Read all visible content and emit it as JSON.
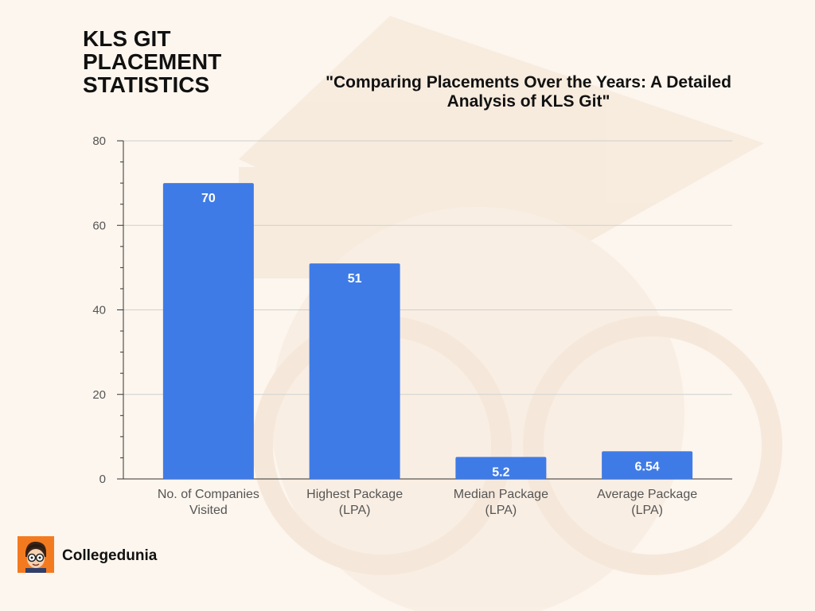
{
  "header": {
    "title": "KLS GIT PLACEMENT STATISTICS",
    "subtitle": "\"Comparing Placements Over the Years: A Detailed Analysis of  KLS Git\""
  },
  "brand": {
    "name": "Collegedunia",
    "logo_color": "#f47a20",
    "logo_icon": "student-mascot-icon"
  },
  "chart_data": {
    "type": "bar",
    "title": "\"Comparing Placements Over the Years: A Detailed Analysis of  KLS Git\"",
    "categories": [
      [
        "No. of Companies",
        "Visited"
      ],
      [
        "Highest Package",
        "(LPA)"
      ],
      [
        "Median Package",
        "(LPA)"
      ],
      [
        "Average Package",
        "(LPA)"
      ]
    ],
    "values": [
      70,
      51,
      5.2,
      6.54
    ],
    "data_labels": [
      "70",
      "51",
      "5.2",
      "6.54"
    ],
    "ylim": [
      0,
      80
    ],
    "yticks": [
      0,
      20,
      40,
      60,
      80
    ],
    "grid": true,
    "bar_color": "#3f7be6",
    "xlabel": "",
    "ylabel": ""
  }
}
